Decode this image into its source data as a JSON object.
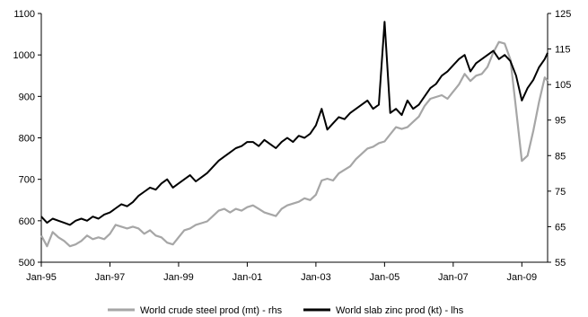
{
  "chart_data": {
    "type": "line",
    "x_ticks": [
      "Jan-95",
      "Jan-97",
      "Jan-99",
      "Jan-01",
      "Jan-03",
      "Jan-05",
      "Jan-07",
      "Jan-09"
    ],
    "xlim": [
      "1995-01",
      "2009-10"
    ],
    "y_left": {
      "ticks": [
        500,
        600,
        700,
        800,
        900,
        1000,
        1100
      ],
      "ylim": [
        500,
        1100
      ]
    },
    "y_right": {
      "ticks": [
        55,
        65,
        75,
        85,
        95,
        105,
        115,
        125
      ],
      "ylim": [
        55,
        125
      ]
    },
    "grid": false,
    "legend_position": "bottom",
    "series": [
      {
        "name": "World crude steel prod (mt) - rhs",
        "axis": "right",
        "color": "#a6a6a6",
        "x": [
          "1995-01",
          "1995-03",
          "1995-05",
          "1995-07",
          "1995-09",
          "1995-11",
          "1996-01",
          "1996-03",
          "1996-05",
          "1996-07",
          "1996-09",
          "1996-11",
          "1997-01",
          "1997-03",
          "1997-05",
          "1997-07",
          "1997-09",
          "1997-11",
          "1998-01",
          "1998-03",
          "1998-05",
          "1998-07",
          "1998-09",
          "1998-11",
          "1999-01",
          "1999-03",
          "1999-05",
          "1999-07",
          "1999-09",
          "1999-11",
          "2000-01",
          "2000-03",
          "2000-05",
          "2000-07",
          "2000-09",
          "2000-11",
          "2001-01",
          "2001-03",
          "2001-05",
          "2001-07",
          "2001-09",
          "2001-11",
          "2002-01",
          "2002-03",
          "2002-05",
          "2002-07",
          "2002-09",
          "2002-11",
          "2003-01",
          "2003-03",
          "2003-05",
          "2003-07",
          "2003-09",
          "2003-11",
          "2004-01",
          "2004-03",
          "2004-05",
          "2004-07",
          "2004-09",
          "2004-11",
          "2005-01",
          "2005-03",
          "2005-05",
          "2005-07",
          "2005-09",
          "2005-11",
          "2006-01",
          "2006-03",
          "2006-05",
          "2006-07",
          "2006-09",
          "2006-11",
          "2007-01",
          "2007-03",
          "2007-05",
          "2007-07",
          "2007-09",
          "2007-11",
          "2008-01",
          "2008-03",
          "2008-05",
          "2008-07",
          "2008-09",
          "2008-11",
          "2009-01",
          "2009-03",
          "2009-05",
          "2009-07",
          "2009-09",
          "2009-10"
        ],
        "values": [
          62.5,
          59.5,
          63.5,
          62.0,
          61.0,
          59.5,
          60.0,
          61.0,
          62.5,
          61.5,
          62.0,
          61.5,
          63.0,
          65.5,
          65.0,
          64.5,
          65.0,
          64.5,
          63.0,
          64.0,
          62.5,
          62.0,
          60.5,
          60.0,
          62.0,
          64.0,
          64.5,
          65.5,
          66.0,
          66.5,
          68.0,
          69.5,
          70.0,
          69.0,
          70.0,
          69.5,
          70.5,
          71.0,
          70.0,
          69.0,
          68.5,
          68.0,
          70.0,
          71.0,
          71.5,
          72.0,
          73.0,
          72.5,
          74.0,
          78.0,
          78.5,
          78.0,
          80.0,
          81.0,
          82.0,
          84.0,
          85.5,
          87.0,
          87.5,
          88.5,
          89.0,
          91.0,
          93.0,
          92.5,
          93.0,
          94.5,
          96.0,
          99.0,
          101.0,
          101.5,
          102.0,
          101.0,
          103.0,
          105.0,
          108.0,
          106.0,
          107.5,
          108.0,
          110.0,
          114.0,
          117.0,
          116.5,
          112.0,
          98.0,
          83.5,
          85.0,
          92.0,
          100.0,
          107.0,
          106.0
        ]
      },
      {
        "name": "World slab zinc prod (kt) - lhs",
        "axis": "left",
        "color": "#000000",
        "x": [
          "1995-01",
          "1995-03",
          "1995-05",
          "1995-07",
          "1995-09",
          "1995-11",
          "1996-01",
          "1996-03",
          "1996-05",
          "1996-07",
          "1996-09",
          "1996-11",
          "1997-01",
          "1997-03",
          "1997-05",
          "1997-07",
          "1997-09",
          "1997-11",
          "1998-01",
          "1998-03",
          "1998-05",
          "1998-07",
          "1998-09",
          "1998-11",
          "1999-01",
          "1999-03",
          "1999-05",
          "1999-07",
          "1999-09",
          "1999-11",
          "2000-01",
          "2000-03",
          "2000-05",
          "2000-07",
          "2000-09",
          "2000-11",
          "2001-01",
          "2001-03",
          "2001-05",
          "2001-07",
          "2001-09",
          "2001-11",
          "2002-01",
          "2002-03",
          "2002-05",
          "2002-07",
          "2002-09",
          "2002-11",
          "2003-01",
          "2003-03",
          "2003-05",
          "2003-07",
          "2003-09",
          "2003-11",
          "2004-01",
          "2004-03",
          "2004-05",
          "2004-07",
          "2004-09",
          "2004-11",
          "2005-01",
          "2005-03",
          "2005-05",
          "2005-07",
          "2005-09",
          "2005-11",
          "2006-01",
          "2006-03",
          "2006-05",
          "2006-07",
          "2006-09",
          "2006-11",
          "2007-01",
          "2007-03",
          "2007-05",
          "2007-07",
          "2007-09",
          "2007-11",
          "2008-01",
          "2008-03",
          "2008-05",
          "2008-07",
          "2008-09",
          "2008-11",
          "2009-01",
          "2009-03",
          "2009-05",
          "2009-07",
          "2009-09",
          "2009-10"
        ],
        "values": [
          610,
          595,
          605,
          600,
          595,
          590,
          600,
          605,
          600,
          610,
          605,
          615,
          620,
          630,
          640,
          635,
          645,
          660,
          670,
          680,
          675,
          690,
          700,
          680,
          690,
          700,
          710,
          695,
          705,
          715,
          730,
          745,
          755,
          765,
          775,
          780,
          790,
          790,
          780,
          795,
          785,
          775,
          790,
          800,
          790,
          805,
          800,
          810,
          830,
          870,
          820,
          835,
          850,
          845,
          860,
          870,
          880,
          890,
          870,
          880,
          1080,
          860,
          870,
          855,
          890,
          870,
          880,
          900,
          920,
          930,
          950,
          960,
          975,
          990,
          1000,
          960,
          980,
          990,
          1000,
          1010,
          990,
          1000,
          985,
          950,
          890,
          920,
          940,
          970,
          990,
          1005
        ]
      }
    ]
  }
}
